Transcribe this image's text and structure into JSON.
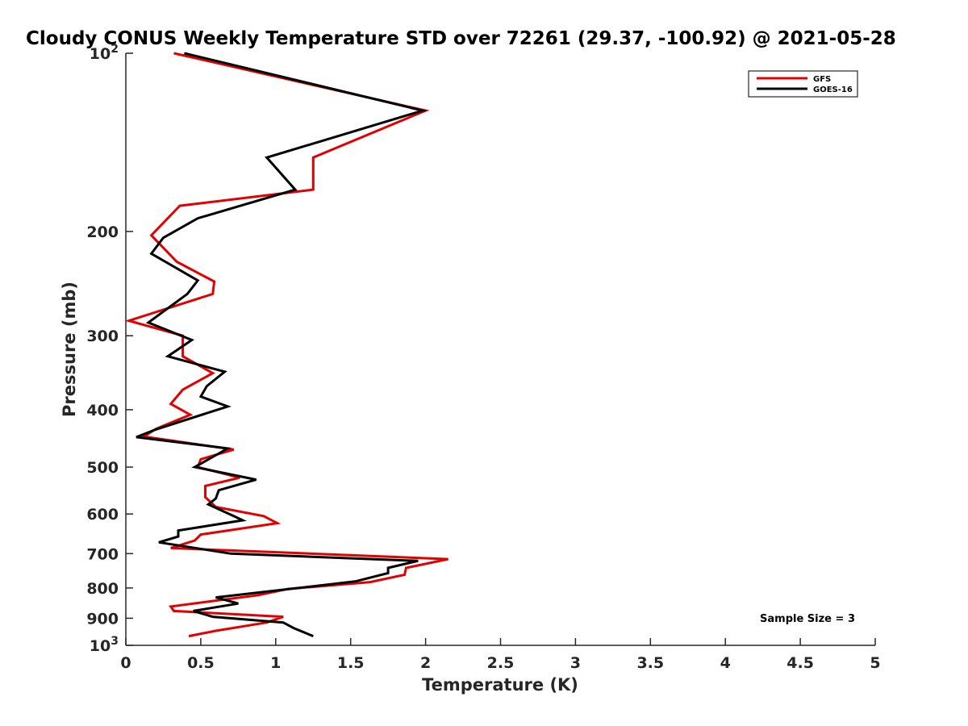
{
  "chart_data": {
    "type": "line",
    "title": "Cloudy CONUS Weekly Temperature STD over 72261 (29.37, -100.92) @ 2021-05-28",
    "xlabel": "Temperature (K)",
    "ylabel": "Pressure (mb)",
    "xlim": [
      0,
      5
    ],
    "ylim": [
      100,
      1000
    ],
    "y_scale": "log",
    "y_reversed": true,
    "grid": false,
    "legend_position": "top-right",
    "x_ticks": [
      "0",
      "0.5",
      "1",
      "1.5",
      "2",
      "2.5",
      "3",
      "3.5",
      "4",
      "4.5",
      "5"
    ],
    "y_ticks": [
      {
        "value": 100,
        "base": "10",
        "exp": "2"
      },
      {
        "value": 200,
        "label": "200"
      },
      {
        "value": 300,
        "label": "300"
      },
      {
        "value": 400,
        "label": "400"
      },
      {
        "value": 500,
        "label": "500"
      },
      {
        "value": 600,
        "label": "600"
      },
      {
        "value": 700,
        "label": "700"
      },
      {
        "value": 800,
        "label": "800"
      },
      {
        "value": 900,
        "label": "900"
      },
      {
        "value": 1000,
        "base": "10",
        "exp": "3"
      }
    ],
    "annotation": "Sample Size = 3",
    "series": [
      {
        "name": "GFS",
        "color": "#e30000",
        "points": [
          [
            0.32,
            100
          ],
          [
            2.0,
            125
          ],
          [
            1.25,
            150
          ],
          [
            1.25,
            170
          ],
          [
            0.36,
            181
          ],
          [
            0.17,
            203
          ],
          [
            0.34,
            225
          ],
          [
            0.59,
            243
          ],
          [
            0.58,
            255
          ],
          [
            0.02,
            283
          ],
          [
            0.38,
            300
          ],
          [
            0.38,
            325
          ],
          [
            0.58,
            347
          ],
          [
            0.38,
            370
          ],
          [
            0.3,
            391
          ],
          [
            0.43,
            408
          ],
          [
            0.2,
            431
          ],
          [
            0.12,
            444
          ],
          [
            0.72,
            467
          ],
          [
            0.5,
            485
          ],
          [
            0.48,
            500
          ],
          [
            0.76,
            521
          ],
          [
            0.53,
            538
          ],
          [
            0.53,
            562
          ],
          [
            0.6,
            584
          ],
          [
            0.92,
            605
          ],
          [
            1.01,
            622
          ],
          [
            0.5,
            650
          ],
          [
            0.46,
            665
          ],
          [
            0.3,
            685
          ],
          [
            2.15,
            715
          ],
          [
            1.87,
            740
          ],
          [
            1.86,
            760
          ],
          [
            1.63,
            782
          ],
          [
            1.08,
            803
          ],
          [
            0.88,
            823
          ],
          [
            0.3,
            860
          ],
          [
            0.32,
            875
          ],
          [
            1.05,
            895
          ],
          [
            0.94,
            915
          ],
          [
            0.6,
            945
          ],
          [
            0.42,
            965
          ]
        ]
      },
      {
        "name": "GOES-16",
        "color": "#000000",
        "points": [
          [
            0.39,
            100
          ],
          [
            1.98,
            125
          ],
          [
            0.94,
            150
          ],
          [
            1.13,
            170
          ],
          [
            0.48,
            190
          ],
          [
            0.25,
            205
          ],
          [
            0.17,
            218
          ],
          [
            0.48,
            242
          ],
          [
            0.41,
            255
          ],
          [
            0.15,
            285
          ],
          [
            0.44,
            305
          ],
          [
            0.28,
            325
          ],
          [
            0.66,
            345
          ],
          [
            0.54,
            365
          ],
          [
            0.5,
            380
          ],
          [
            0.68,
            395
          ],
          [
            0.2,
            432
          ],
          [
            0.07,
            445
          ],
          [
            0.68,
            465
          ],
          [
            0.46,
            500
          ],
          [
            0.87,
            525
          ],
          [
            0.62,
            547
          ],
          [
            0.6,
            565
          ],
          [
            0.55,
            578
          ],
          [
            0.72,
            605
          ],
          [
            0.78,
            615
          ],
          [
            0.35,
            640
          ],
          [
            0.35,
            655
          ],
          [
            0.22,
            670
          ],
          [
            0.7,
            700
          ],
          [
            1.95,
            720
          ],
          [
            1.75,
            740
          ],
          [
            1.75,
            755
          ],
          [
            1.53,
            780
          ],
          [
            0.6,
            830
          ],
          [
            0.75,
            850
          ],
          [
            0.45,
            875
          ],
          [
            0.58,
            895
          ],
          [
            1.05,
            915
          ],
          [
            1.12,
            935
          ],
          [
            1.25,
            965
          ]
        ]
      }
    ]
  }
}
